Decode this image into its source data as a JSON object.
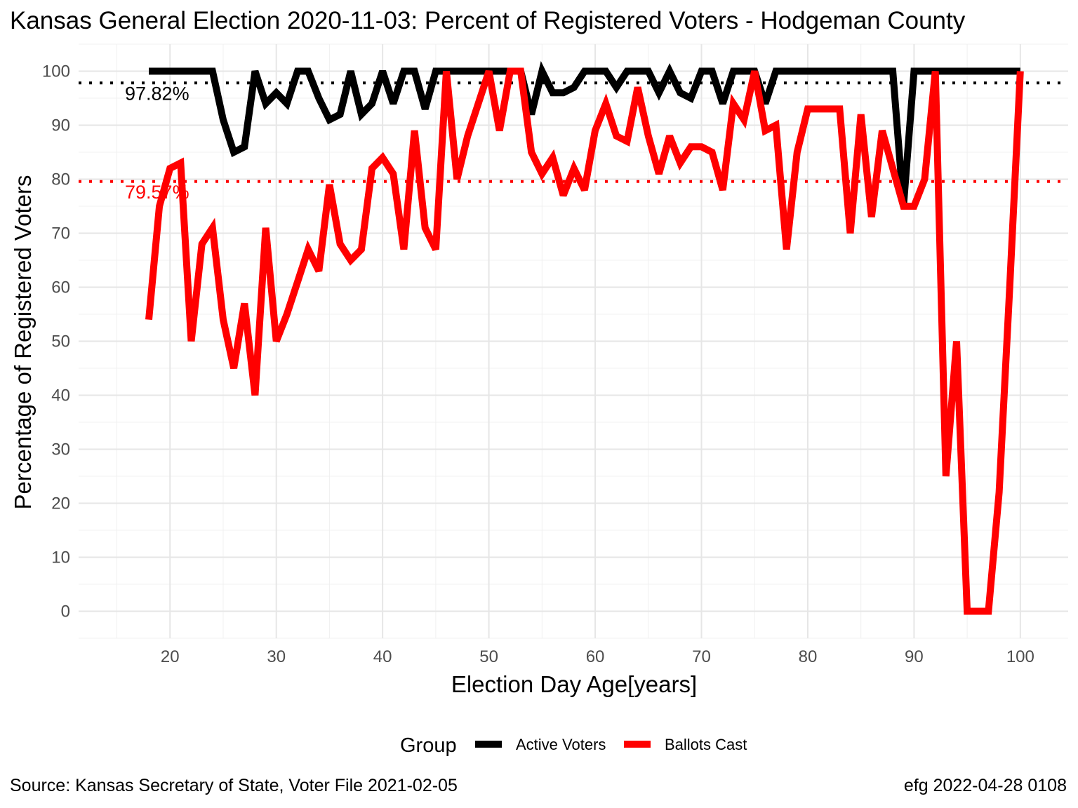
{
  "title": "Kansas General Election 2020-11-03:  Percent of Registered Voters - Hodgeman County",
  "caption_left": "Source:  Kansas Secretary of State, Voter File  2021-02-05",
  "caption_right": "efg 2022-04-28 0108",
  "chart_data": {
    "type": "line",
    "xlabel": "Election Day Age[years]",
    "ylabel": "Percentage of Registered Voters",
    "xlim": [
      11.4,
      104.5
    ],
    "ylim": [
      -5,
      105
    ],
    "x_ticks": [
      20,
      30,
      40,
      50,
      60,
      70,
      80,
      90,
      100
    ],
    "y_ticks": [
      0,
      10,
      20,
      30,
      40,
      50,
      60,
      70,
      80,
      90,
      100
    ],
    "grid": true,
    "legend": {
      "title": "Group",
      "position": "bottom"
    },
    "series": [
      {
        "name": "Active Voters",
        "color": "#000000",
        "x": [
          18,
          19,
          20,
          21,
          22,
          23,
          24,
          25,
          26,
          27,
          28,
          29,
          30,
          31,
          32,
          33,
          34,
          35,
          36,
          37,
          38,
          39,
          40,
          41,
          42,
          43,
          44,
          45,
          46,
          47,
          48,
          49,
          50,
          51,
          52,
          53,
          54,
          55,
          56,
          57,
          58,
          59,
          60,
          61,
          62,
          63,
          64,
          65,
          66,
          67,
          68,
          69,
          70,
          71,
          72,
          73,
          74,
          75,
          76,
          77,
          78,
          79,
          80,
          81,
          82,
          83,
          84,
          85,
          86,
          87,
          88,
          89,
          90,
          91,
          92,
          93,
          94,
          95,
          96,
          97,
          98,
          99,
          100
        ],
        "values": [
          100,
          100,
          100,
          100,
          100,
          100,
          100,
          91,
          85,
          86,
          100,
          94,
          96,
          94,
          100,
          100,
          95,
          91,
          92,
          100,
          92,
          94,
          100,
          94,
          100,
          100,
          93,
          100,
          100,
          100,
          100,
          100,
          100,
          100,
          100,
          100,
          92,
          100,
          96,
          96,
          97,
          100,
          100,
          100,
          97,
          100,
          100,
          100,
          96,
          100,
          96,
          95,
          100,
          100,
          94,
          100,
          100,
          100,
          94,
          100,
          100,
          100,
          100,
          100,
          100,
          100,
          100,
          100,
          100,
          100,
          100,
          75,
          100,
          100,
          100,
          100,
          100,
          100,
          100,
          100,
          100,
          100,
          100
        ]
      },
      {
        "name": "Ballots Cast",
        "color": "#ff0000",
        "x": [
          18,
          19,
          20,
          21,
          22,
          23,
          24,
          25,
          26,
          27,
          28,
          29,
          30,
          31,
          32,
          33,
          34,
          35,
          36,
          37,
          38,
          39,
          40,
          41,
          42,
          43,
          44,
          45,
          46,
          47,
          48,
          49,
          50,
          51,
          52,
          53,
          54,
          55,
          56,
          57,
          58,
          59,
          60,
          61,
          62,
          63,
          64,
          65,
          66,
          67,
          68,
          69,
          70,
          71,
          72,
          73,
          74,
          75,
          76,
          77,
          78,
          79,
          80,
          81,
          82,
          83,
          84,
          85,
          86,
          87,
          88,
          89,
          90,
          91,
          92,
          93,
          94,
          95,
          96,
          97,
          98,
          99,
          100
        ],
        "values": [
          54,
          75,
          82,
          83,
          50,
          68,
          71,
          54,
          45,
          57,
          40,
          71,
          50,
          55,
          61,
          67,
          63,
          79,
          68,
          65,
          67,
          82,
          84,
          81,
          67,
          89,
          71,
          67,
          100,
          80,
          88,
          94,
          100,
          89,
          100,
          100,
          85,
          81,
          84,
          77,
          82,
          78,
          89,
          94,
          88,
          87,
          97,
          88,
          81,
          88,
          83,
          86,
          86,
          85,
          78,
          94,
          91,
          100,
          89,
          90,
          67,
          85,
          93,
          93,
          93,
          93,
          70,
          92,
          73,
          89,
          82,
          75,
          75,
          80,
          100,
          25,
          50,
          0,
          0,
          0,
          22,
          60,
          100
        ]
      }
    ],
    "reference_lines": [
      {
        "value": 97.82,
        "label": "97.82%",
        "color": "#000000"
      },
      {
        "value": 79.57,
        "label": "79.57%",
        "color": "#ff0000"
      }
    ]
  }
}
